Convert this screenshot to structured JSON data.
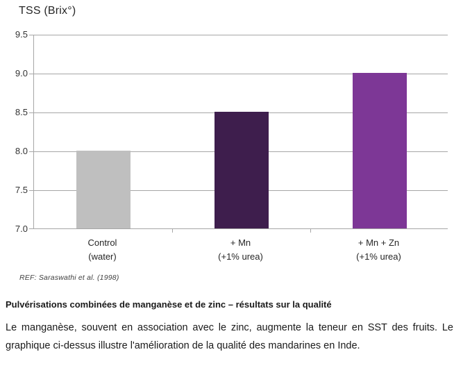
{
  "chart_data": {
    "type": "bar",
    "title": "TSS (Brix°)",
    "xlabel": "",
    "ylabel": "TSS (Brix°)",
    "ylim": [
      7.0,
      9.5
    ],
    "ytick_labels": [
      "9.5",
      "9.0",
      "8.5",
      "8.0",
      "7.5",
      "7.0"
    ],
    "grid": true,
    "legend": "none",
    "categories": [
      "Control (water)",
      "+ Mn (+1% urea)",
      "+ Mn + Zn (+1% urea)"
    ],
    "values": [
      8.0,
      8.5,
      9.0
    ],
    "bars": [
      {
        "label_lines": [
          "Control",
          "(water)"
        ],
        "value": 8.0,
        "color": "#bfbfbf"
      },
      {
        "label_lines": [
          "+ Mn",
          "(+1% urea)"
        ],
        "value": 8.5,
        "color": "#3e1e4d"
      },
      {
        "label_lines": [
          "+ Mn + Zn",
          "(+1% urea)"
        ],
        "value": 9.0,
        "color": "#7d3796"
      }
    ],
    "gridline_color": "#a6a6a6"
  },
  "reference": "REF: Saraswathi et al. (1998)",
  "caption": "Pulvérisations combinées de manganèse et de zinc – résultats sur la qualité",
  "body": "Le manganèse, souvent en association avec le zinc, augmente la teneur en SST des fruits. Le graphique ci-dessus illustre l'amélioration de la qualité des mandarines en Inde."
}
